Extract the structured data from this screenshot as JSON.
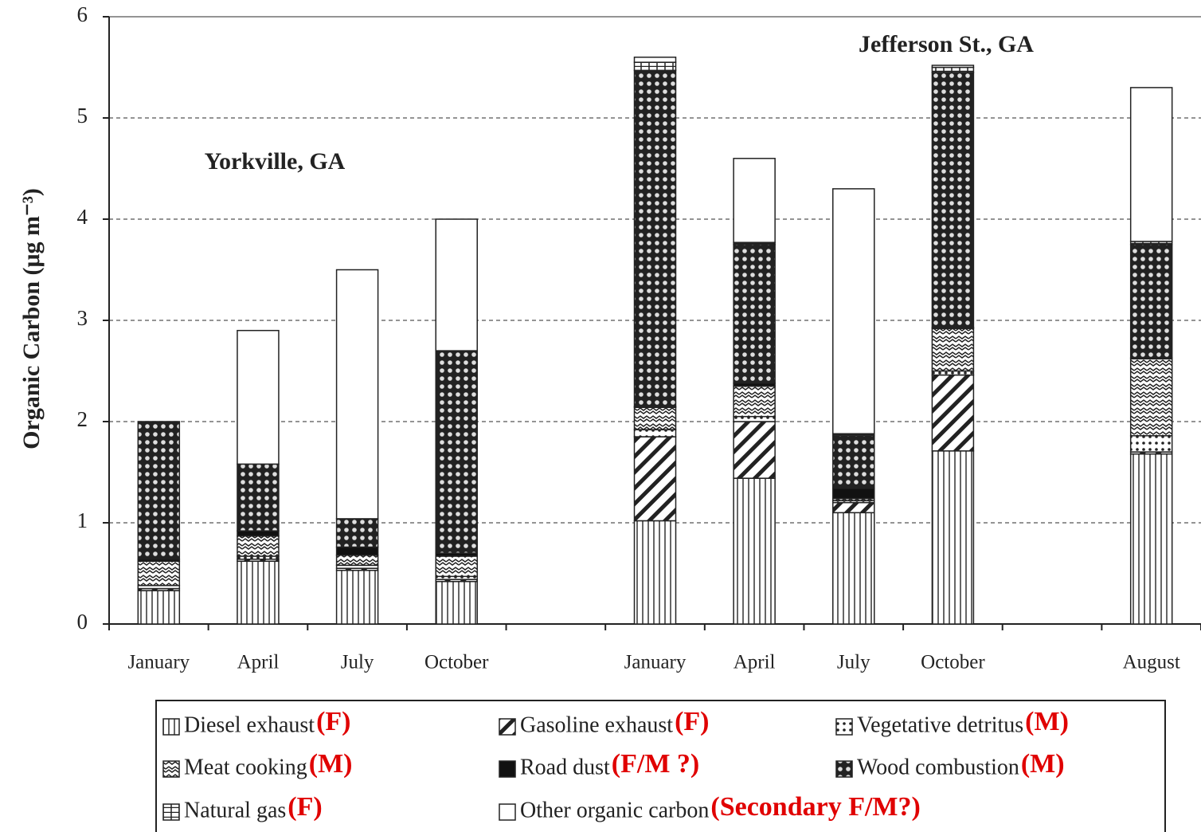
{
  "chart_data": {
    "type": "stacked_bar",
    "ylabel": "Organic Carbon (μg m⁻³)",
    "annotations": [
      "Yorkville, GA",
      "Jefferson St., GA"
    ],
    "categories": [
      "January",
      "April",
      "July",
      "October",
      null,
      "January",
      "April",
      "July",
      "October",
      null,
      "August"
    ],
    "ylim": [
      0,
      6
    ],
    "yticks": [
      0,
      1,
      2,
      3,
      4,
      5,
      6
    ],
    "grid": true,
    "series": [
      {
        "name": "Diesel exhaust",
        "tag": "(F)",
        "values": [
          0.33,
          0.62,
          0.53,
          0.42,
          null,
          1.02,
          1.44,
          1.1,
          1.71,
          null,
          1.68
        ]
      },
      {
        "name": "Gasoline exhaust",
        "tag": "(F)",
        "values": [
          0.02,
          0.02,
          0.02,
          0.02,
          null,
          0.83,
          0.56,
          0.1,
          0.75,
          null,
          0.02
        ]
      },
      {
        "name": "Vegetative detritus",
        "tag": "(M)",
        "values": [
          0.03,
          0.03,
          0.03,
          0.03,
          null,
          0.07,
          0.05,
          0.02,
          0.04,
          null,
          0.16
        ]
      },
      {
        "name": "Meat cooking",
        "tag": "(M)",
        "values": [
          0.24,
          0.2,
          0.1,
          0.2,
          null,
          0.22,
          0.3,
          0.02,
          0.42,
          null,
          0.76
        ]
      },
      {
        "name": "Road dust",
        "tag": "(F/M ?)",
        "values": [
          0.02,
          0.05,
          0.08,
          0.03,
          null,
          0.01,
          0.03,
          0.1,
          0.01,
          null,
          0.01
        ]
      },
      {
        "name": "Wood combustion",
        "tag": "(M)",
        "values": [
          1.36,
          0.66,
          0.28,
          2.0,
          null,
          3.32,
          1.37,
          0.52,
          2.52,
          null,
          1.12
        ]
      },
      {
        "name": "Natural gas",
        "tag": "(F)",
        "values": [
          0,
          0,
          0,
          0,
          null,
          0.08,
          0.02,
          0.02,
          0.05,
          null,
          0.03
        ]
      },
      {
        "name": "Other organic carbon",
        "tag": "(Secondary F/M?)",
        "values": [
          0,
          1.32,
          2.46,
          1.3,
          null,
          0.05,
          0.83,
          2.42,
          0.02,
          null,
          1.52
        ]
      }
    ]
  }
}
